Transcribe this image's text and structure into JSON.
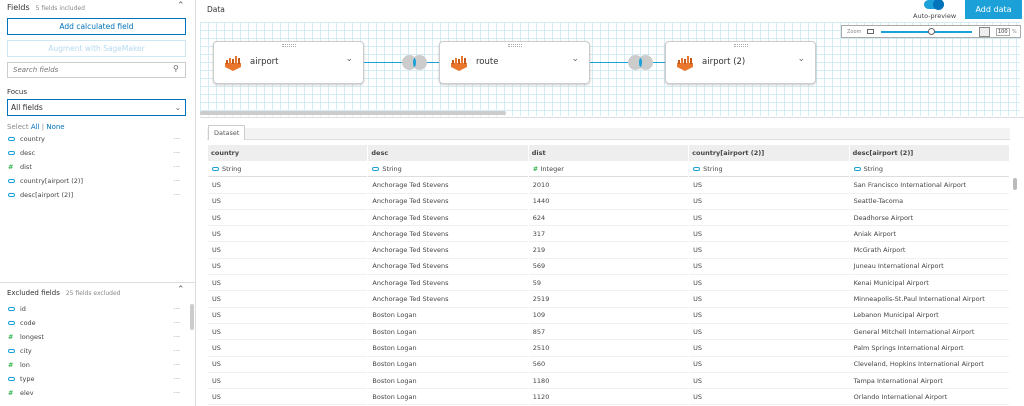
{
  "fields": {
    "title": "Fields",
    "subtitle": "5 fields included",
    "add_calc": "Add calculated field",
    "augment": "Augment with SageMaker",
    "search_placeholder": "Search fields",
    "focus_label": "Focus",
    "focus_value": "All fields",
    "select_label": "Select",
    "select_all": "All",
    "select_none": "None",
    "items": [
      {
        "name": "country",
        "type": "string"
      },
      {
        "name": "desc",
        "type": "string"
      },
      {
        "name": "dist",
        "type": "number"
      },
      {
        "name": "country[airport (2)]",
        "type": "string"
      },
      {
        "name": "desc[airport (2)]",
        "type": "string"
      }
    ]
  },
  "excluded": {
    "title": "Excluded fields",
    "subtitle": "25 fields excluded",
    "items": [
      {
        "name": "id",
        "type": "string"
      },
      {
        "name": "code",
        "type": "string"
      },
      {
        "name": "longest",
        "type": "number"
      },
      {
        "name": "city",
        "type": "string"
      },
      {
        "name": "lon",
        "type": "number"
      },
      {
        "name": "type",
        "type": "string"
      },
      {
        "name": "elev",
        "type": "number"
      }
    ]
  },
  "header": {
    "title": "Data",
    "auto_preview": "Auto-preview",
    "add_data": "Add data"
  },
  "zoom": {
    "label": "Zoom",
    "value": "100",
    "unit": "%",
    "level": 0.55
  },
  "nodes": [
    {
      "label": "airport"
    },
    {
      "label": "route"
    },
    {
      "label": "airport (2)"
    }
  ],
  "colors": {
    "accent": "#0073bb",
    "string": "#1ba1d8",
    "number": "#2cb34a",
    "source": "#e8762d"
  },
  "dataset_tab": "Dataset",
  "table": {
    "columns": [
      {
        "name": "country",
        "type": "String"
      },
      {
        "name": "desc",
        "type": "String"
      },
      {
        "name": "dist",
        "type": "Integer"
      },
      {
        "name": "country[airport (2)]",
        "type": "String"
      },
      {
        "name": "desc[airport (2)]",
        "type": "String"
      }
    ],
    "rows": [
      [
        "US",
        "Anchorage Ted Stevens",
        "2010",
        "US",
        "San Francisco International Airport"
      ],
      [
        "US",
        "Anchorage Ted Stevens",
        "1440",
        "US",
        "Seattle-Tacoma"
      ],
      [
        "US",
        "Anchorage Ted Stevens",
        "624",
        "US",
        "Deadhorse Airport"
      ],
      [
        "US",
        "Anchorage Ted Stevens",
        "317",
        "US",
        "Aniak Airport"
      ],
      [
        "US",
        "Anchorage Ted Stevens",
        "219",
        "US",
        "McGrath Airport"
      ],
      [
        "US",
        "Anchorage Ted Stevens",
        "569",
        "US",
        "Juneau International Airport"
      ],
      [
        "US",
        "Anchorage Ted Stevens",
        "59",
        "US",
        "Kenai Municipal Airport"
      ],
      [
        "US",
        "Anchorage Ted Stevens",
        "2519",
        "US",
        "Minneapolis-St.Paul International Airport"
      ],
      [
        "US",
        "Boston Logan",
        "109",
        "US",
        "Lebanon Municipal Airport"
      ],
      [
        "US",
        "Boston Logan",
        "857",
        "US",
        "General Mitchell International Airport"
      ],
      [
        "US",
        "Boston Logan",
        "2510",
        "US",
        "Palm Springs International Airport"
      ],
      [
        "US",
        "Boston Logan",
        "560",
        "US",
        "Cleveland, Hopkins International Airport"
      ],
      [
        "US",
        "Boston Logan",
        "1180",
        "US",
        "Tampa International Airport"
      ],
      [
        "US",
        "Boston Logan",
        "1120",
        "US",
        "Orlando International Airport"
      ]
    ]
  }
}
